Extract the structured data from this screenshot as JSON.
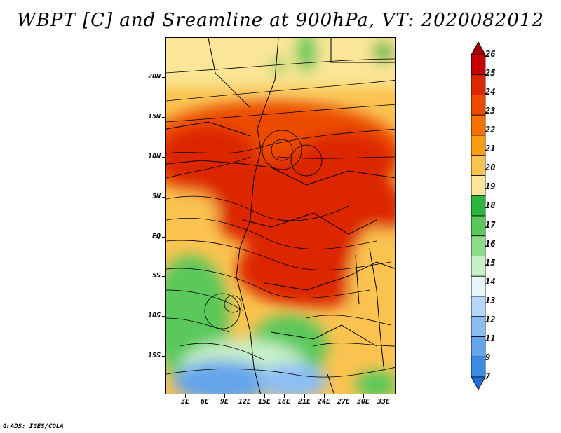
{
  "title": "WBPT [C] and Sreamline at 900hPa, VT: 2020082012",
  "credit": "GrADS: IGES/COLA",
  "lat_labels": [
    "20N",
    "15N",
    "10N",
    "5N",
    "EQ",
    "5S",
    "10S",
    "15S"
  ],
  "lon_labels": [
    "3E",
    "6E",
    "9E",
    "12E",
    "15E",
    "18E",
    "21E",
    "24E",
    "27E",
    "30E",
    "33E"
  ],
  "colorbar": {
    "labels": [
      "26",
      "25",
      "24",
      "23",
      "22",
      "21",
      "20",
      "19",
      "18",
      "17",
      "16",
      "15",
      "14",
      "13",
      "12",
      "11",
      "9",
      "7"
    ],
    "colors": [
      "#a50000",
      "#c80000",
      "#dc2800",
      "#eb4b00",
      "#f57300",
      "#fa9b14",
      "#fac350",
      "#fae696",
      "#2db43c",
      "#5ac85a",
      "#8cdc8c",
      "#c8f0c8",
      "#e6f5f5",
      "#b4d7fa",
      "#8cbef5",
      "#64a5eb",
      "#3c8ce6",
      "#1e6edc"
    ]
  },
  "fields": {
    "variable": "WBPT [C]",
    "overlay": "Sreamline",
    "level": "900hPa",
    "valid_time": "2020082012"
  }
}
